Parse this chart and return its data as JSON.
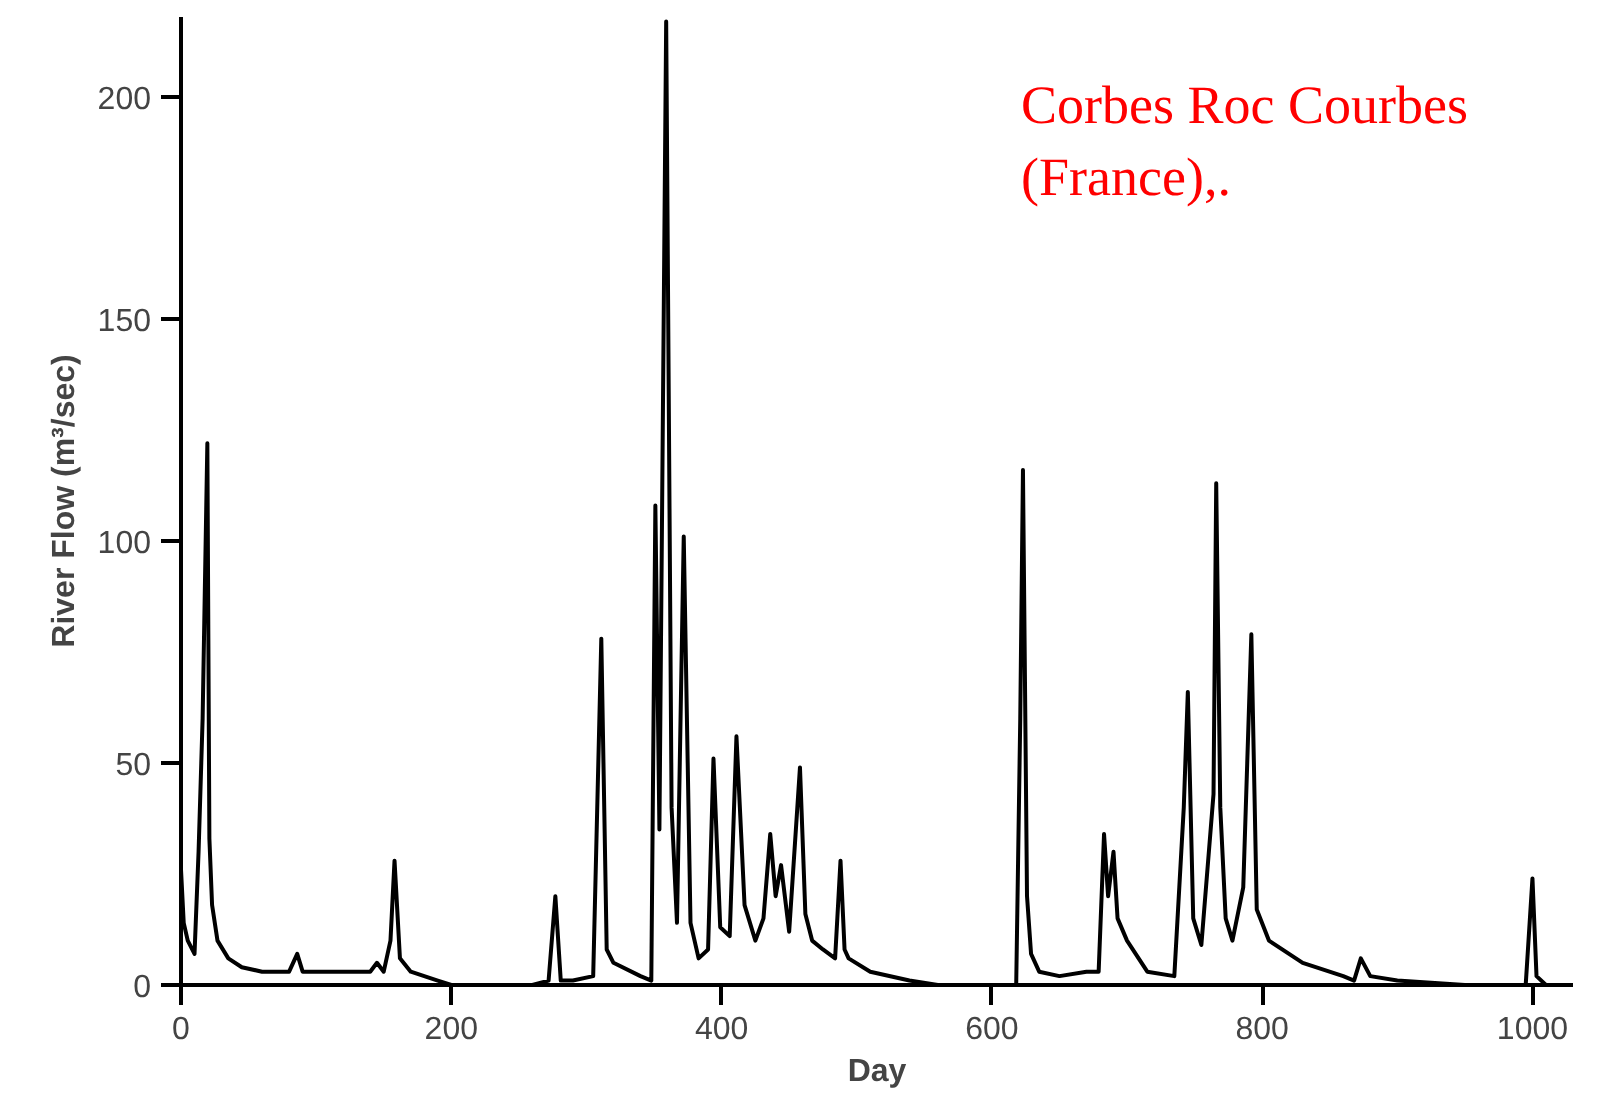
{
  "chart_data": {
    "type": "line",
    "xlabel": "Day",
    "ylabel": "River Flow (m³/sec)",
    "annotations": [
      "Corbes Roc Courbes\n(France),."
    ],
    "xlim": [
      0,
      1030
    ],
    "ylim": [
      0,
      218
    ],
    "xticks": [
      0,
      200,
      400,
      600,
      800,
      1000
    ],
    "yticks": [
      0,
      50,
      100,
      150,
      200
    ],
    "grid": false,
    "marker": "none",
    "line_style": "solid",
    "series": [
      {
        "color": "#000000",
        "x": [
          0,
          2,
          5,
          10,
          13,
          16,
          19.5,
          21,
          23,
          27,
          35,
          45,
          60,
          80,
          86,
          90,
          110,
          140,
          145,
          150,
          155,
          158,
          162,
          170,
          190,
          200,
          220,
          260,
          272,
          277,
          281,
          290,
          305,
          311,
          315,
          320,
          340,
          348,
          351,
          354,
          359,
          363,
          367,
          372,
          377,
          383,
          390,
          394,
          399,
          406,
          411,
          417,
          425,
          431,
          436,
          440,
          444,
          450,
          458,
          462,
          467,
          475,
          484,
          488,
          491,
          494,
          510,
          539,
          560,
          600,
          618,
          621,
          623,
          626,
          629,
          635,
          650,
          670,
          679,
          683,
          686,
          690,
          693,
          700,
          715,
          735,
          742,
          745,
          749,
          755,
          764,
          766,
          769,
          773,
          778,
          786,
          792,
          796,
          805,
          830,
          860,
          868,
          873,
          880,
          900,
          950,
          995,
          1000,
          1003,
          1010,
          1025
        ],
        "values": [
          26,
          14,
          10,
          7,
          30,
          60,
          122,
          33,
          18,
          10,
          6,
          4,
          3,
          3,
          7,
          3,
          3,
          3,
          5,
          3,
          10,
          28,
          6,
          3,
          1,
          0,
          0,
          0,
          1,
          20,
          1,
          1,
          2,
          78,
          8,
          5,
          2,
          1,
          108,
          35,
          217,
          40,
          14,
          101,
          14,
          6,
          8,
          51,
          13,
          11,
          56,
          18,
          10,
          15,
          34,
          20,
          27,
          12,
          49,
          16,
          10,
          8,
          6,
          28,
          8,
          6,
          3,
          1,
          0,
          0,
          0,
          60,
          116,
          20,
          7,
          3,
          2,
          3,
          3,
          34,
          20,
          30,
          15,
          10,
          3,
          2,
          40,
          66,
          15,
          9,
          43,
          113,
          40,
          15,
          10,
          22,
          79,
          17,
          10,
          5,
          2,
          1,
          6,
          2,
          1,
          0,
          0,
          24,
          2,
          0,
          0
        ]
      }
    ]
  }
}
